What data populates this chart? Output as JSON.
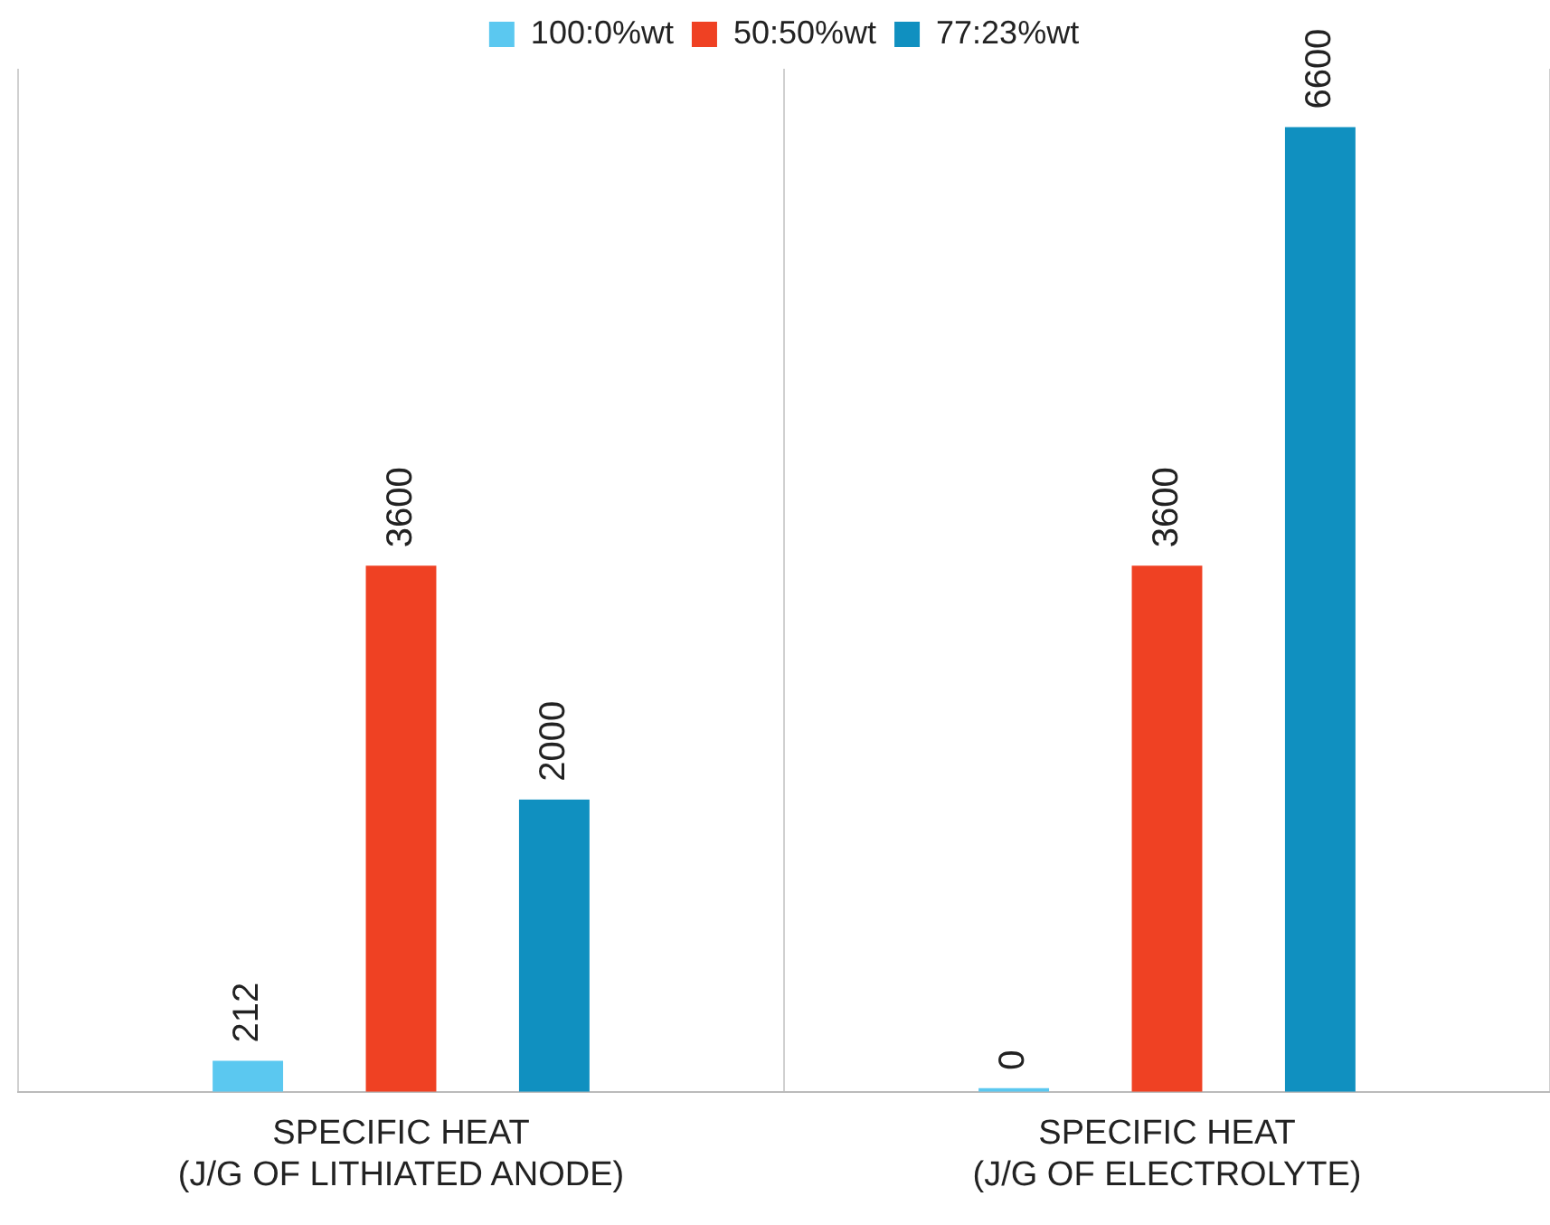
{
  "chart_data": {
    "type": "bar",
    "categories": [
      "SPECIFIC HEAT\n(J/G OF LITHIATED ANODE)",
      "SPECIFIC HEAT\n(J/G OF ELECTROLYTE)"
    ],
    "series": [
      {
        "name": "100:0%wt",
        "color": "#5bc8f0",
        "values": [
          212,
          0
        ]
      },
      {
        "name": "50:50%wt",
        "color": "#ef4123",
        "values": [
          3600,
          3600
        ]
      },
      {
        "name": "77:23%wt",
        "color": "#1090c0",
        "values": [
          2000,
          6600
        ]
      }
    ],
    "data_labels": true,
    "legend": "top",
    "grid": "x",
    "tick_labels": "x"
  }
}
